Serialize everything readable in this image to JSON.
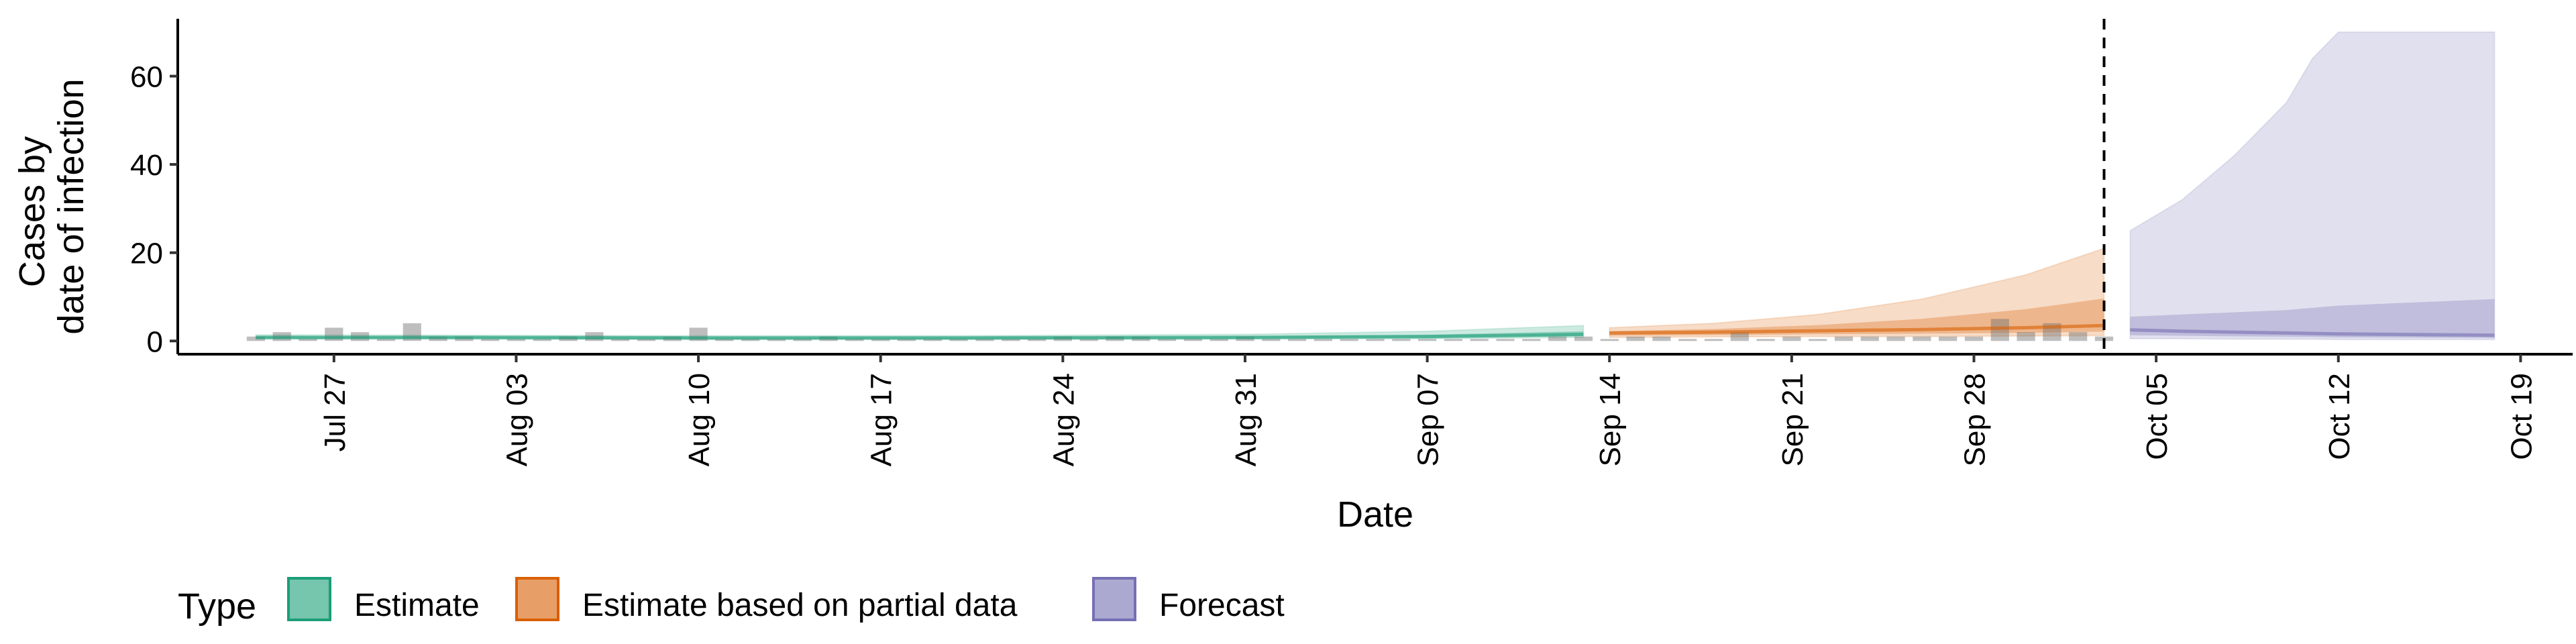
{
  "chart_data": {
    "type": "area",
    "xlabel": "Date",
    "ylabel_lines": [
      "Cases by",
      "date of infection"
    ],
    "xlim": [
      "2020-07-21",
      "2020-10-21"
    ],
    "ylim": [
      -3,
      73
    ],
    "x_ticks": [
      {
        "date": "2020-07-27",
        "label": "Jul 27"
      },
      {
        "date": "2020-08-03",
        "label": "Aug 03"
      },
      {
        "date": "2020-08-10",
        "label": "Aug 10"
      },
      {
        "date": "2020-08-17",
        "label": "Aug 17"
      },
      {
        "date": "2020-08-24",
        "label": "Aug 24"
      },
      {
        "date": "2020-08-31",
        "label": "Aug 31"
      },
      {
        "date": "2020-09-07",
        "label": "Sep 07"
      },
      {
        "date": "2020-09-14",
        "label": "Sep 14"
      },
      {
        "date": "2020-09-21",
        "label": "Sep 21"
      },
      {
        "date": "2020-09-28",
        "label": "Sep 28"
      },
      {
        "date": "2020-10-05",
        "label": "Oct 05"
      },
      {
        "date": "2020-10-12",
        "label": "Oct 12"
      },
      {
        "date": "2020-10-19",
        "label": "Oct 19"
      }
    ],
    "y_ticks": [
      {
        "value": 0,
        "label": "0"
      },
      {
        "value": 20,
        "label": "20"
      },
      {
        "value": 40,
        "label": "40"
      },
      {
        "value": 60,
        "label": "60"
      }
    ],
    "grid": false,
    "forecast_boundary": "2020-10-03",
    "reported_cases": [
      {
        "date": "2020-07-24",
        "value": 1
      },
      {
        "date": "2020-07-25",
        "value": 2
      },
      {
        "date": "2020-07-26",
        "value": 0
      },
      {
        "date": "2020-07-27",
        "value": 3
      },
      {
        "date": "2020-07-28",
        "value": 2
      },
      {
        "date": "2020-07-29",
        "value": 0
      },
      {
        "date": "2020-07-30",
        "value": 4
      },
      {
        "date": "2020-07-31",
        "value": 1
      },
      {
        "date": "2020-08-01",
        "value": 1
      },
      {
        "date": "2020-08-02",
        "value": 0
      },
      {
        "date": "2020-08-03",
        "value": 0
      },
      {
        "date": "2020-08-04",
        "value": 0
      },
      {
        "date": "2020-08-05",
        "value": 1
      },
      {
        "date": "2020-08-06",
        "value": 2
      },
      {
        "date": "2020-08-07",
        "value": 0
      },
      {
        "date": "2020-08-08",
        "value": 0
      },
      {
        "date": "2020-08-09",
        "value": 1
      },
      {
        "date": "2020-08-10",
        "value": 3
      },
      {
        "date": "2020-08-11",
        "value": 0
      },
      {
        "date": "2020-08-12",
        "value": 0
      },
      {
        "date": "2020-08-13",
        "value": 0
      },
      {
        "date": "2020-08-14",
        "value": 0
      },
      {
        "date": "2020-08-15",
        "value": 1
      },
      {
        "date": "2020-08-16",
        "value": 0
      },
      {
        "date": "2020-08-17",
        "value": 0
      },
      {
        "date": "2020-08-18",
        "value": 0
      },
      {
        "date": "2020-08-19",
        "value": 0
      },
      {
        "date": "2020-08-20",
        "value": 0
      },
      {
        "date": "2020-08-21",
        "value": 0
      },
      {
        "date": "2020-08-22",
        "value": 0
      },
      {
        "date": "2020-08-23",
        "value": 0
      },
      {
        "date": "2020-08-24",
        "value": 1
      },
      {
        "date": "2020-08-25",
        "value": 0
      },
      {
        "date": "2020-08-26",
        "value": 1
      },
      {
        "date": "2020-08-27",
        "value": 1
      },
      {
        "date": "2020-08-28",
        "value": 0
      },
      {
        "date": "2020-08-29",
        "value": 0
      },
      {
        "date": "2020-08-30",
        "value": 0
      },
      {
        "date": "2020-08-31",
        "value": 1
      },
      {
        "date": "2020-09-01",
        "value": 0
      },
      {
        "date": "2020-09-02",
        "value": 0
      },
      {
        "date": "2020-09-03",
        "value": 0
      },
      {
        "date": "2020-09-04",
        "value": 0
      },
      {
        "date": "2020-09-05",
        "value": 0
      },
      {
        "date": "2020-09-06",
        "value": 0
      },
      {
        "date": "2020-09-07",
        "value": 0
      },
      {
        "date": "2020-09-08",
        "value": 0
      },
      {
        "date": "2020-09-09",
        "value": 0
      },
      {
        "date": "2020-09-10",
        "value": 0
      },
      {
        "date": "2020-09-11",
        "value": 0
      },
      {
        "date": "2020-09-12",
        "value": 1
      },
      {
        "date": "2020-09-13",
        "value": 1
      },
      {
        "date": "2020-09-14",
        "value": 0
      },
      {
        "date": "2020-09-15",
        "value": 1
      },
      {
        "date": "2020-09-16",
        "value": 1
      },
      {
        "date": "2020-09-17",
        "value": 0
      },
      {
        "date": "2020-09-18",
        "value": 0
      },
      {
        "date": "2020-09-19",
        "value": 2
      },
      {
        "date": "2020-09-20",
        "value": 0
      },
      {
        "date": "2020-09-21",
        "value": 1
      },
      {
        "date": "2020-09-22",
        "value": 0
      },
      {
        "date": "2020-09-23",
        "value": 1
      },
      {
        "date": "2020-09-24",
        "value": 1
      },
      {
        "date": "2020-09-25",
        "value": 1
      },
      {
        "date": "2020-09-26",
        "value": 1
      },
      {
        "date": "2020-09-27",
        "value": 1
      },
      {
        "date": "2020-09-28",
        "value": 1
      },
      {
        "date": "2020-09-29",
        "value": 5
      },
      {
        "date": "2020-09-30",
        "value": 2
      },
      {
        "date": "2020-10-01",
        "value": 4
      },
      {
        "date": "2020-10-02",
        "value": 2
      },
      {
        "date": "2020-10-03",
        "value": 1
      }
    ],
    "series": [
      {
        "name": "Estimate",
        "color": "#1b9e77",
        "x": [
          "2020-07-24",
          "2020-08-01",
          "2020-08-10",
          "2020-08-20",
          "2020-08-31",
          "2020-09-07",
          "2020-09-13"
        ],
        "median": [
          0.8,
          0.8,
          0.7,
          0.7,
          0.8,
          1.0,
          1.5
        ],
        "lower": [
          0.4,
          0.4,
          0.3,
          0.3,
          0.4,
          0.5,
          0.8
        ],
        "upper": [
          1.4,
          1.3,
          1.2,
          1.2,
          1.5,
          2.2,
          3.5
        ]
      },
      {
        "name": "Estimate based on partial data",
        "color": "#d95f02",
        "x": [
          "2020-09-14",
          "2020-09-18",
          "2020-09-22",
          "2020-09-26",
          "2020-09-30",
          "2020-10-03"
        ],
        "median": [
          1.8,
          2.0,
          2.3,
          2.6,
          3.0,
          3.5
        ],
        "lower": [
          0.8,
          0.9,
          1.0,
          1.0,
          1.1,
          1.2
        ],
        "upper": [
          3.0,
          4.0,
          6.0,
          9.5,
          15.0,
          21.0
        ]
      },
      {
        "name": "Forecast",
        "color": "#7570b3",
        "x": [
          "2020-10-04",
          "2020-10-06",
          "2020-10-08",
          "2020-10-10",
          "2020-10-11",
          "2020-10-12",
          "2020-10-14",
          "2020-10-16",
          "2020-10-18"
        ],
        "median": [
          2.5,
          2.2,
          2.0,
          1.8,
          1.7,
          1.6,
          1.5,
          1.4,
          1.3
        ],
        "lower": [
          0.5,
          0.5,
          0.4,
          0.4,
          0.4,
          0.3,
          0.3,
          0.3,
          0.3
        ],
        "upper": [
          25,
          32,
          42,
          54,
          64,
          70,
          70,
          70,
          70
        ],
        "inner_upper": [
          5.5,
          6.0,
          6.5,
          7.0,
          7.5,
          8.0,
          8.5,
          9.0,
          9.5
        ]
      }
    ],
    "legend": {
      "title": "Type",
      "position": "bottom",
      "items": [
        {
          "label": "Estimate",
          "color": "#1b9e77"
        },
        {
          "label": "Estimate based on partial data",
          "color": "#d95f02"
        },
        {
          "label": "Forecast",
          "color": "#7570b3"
        }
      ]
    }
  }
}
